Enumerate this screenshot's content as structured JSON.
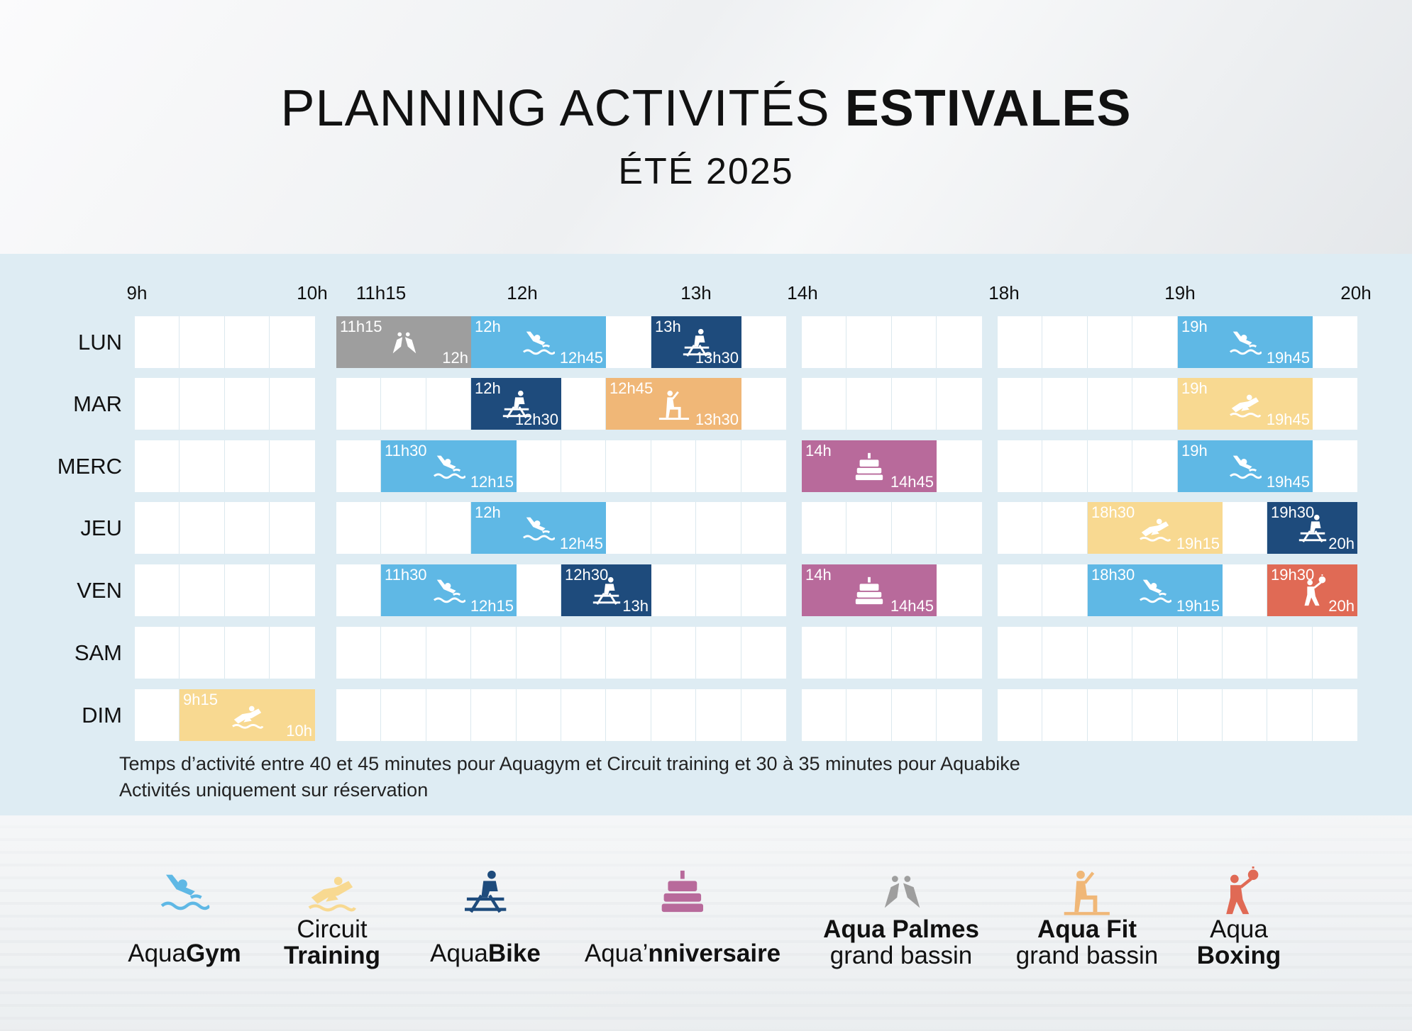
{
  "header": {
    "title_light": "PLANNING ACTIVITÉS",
    "title_bold": "ESTIVALES",
    "subtitle": "ÉTÉ 2025"
  },
  "hours": [
    "9h",
    "10h",
    "11h15",
    "12h",
    "13h",
    "14h",
    "18h",
    "19h",
    "20h"
  ],
  "days": [
    "LUN",
    "MAR",
    "MERC",
    "JEU",
    "VEN",
    "SAM",
    "DIM"
  ],
  "colors": {
    "aquagym": "#5fb8e5",
    "circuit": "#f8d991",
    "aquabike": "#1e4b7c",
    "anniversaire": "#b86a9b",
    "palmes": "#9e9e9e",
    "aquafit": "#f0b777",
    "boxing": "#e06a55"
  },
  "activities": [
    {
      "day": "LUN",
      "type": "palmes",
      "start": "11h15",
      "end": "12h",
      "icon": "fins-icon"
    },
    {
      "day": "LUN",
      "type": "aquagym",
      "start": "12h",
      "end": "12h45",
      "icon": "swimmer-icon"
    },
    {
      "day": "LUN",
      "type": "aquabike",
      "start": "13h",
      "end": "13h30",
      "icon": "bike-icon"
    },
    {
      "day": "LUN",
      "type": "aquagym",
      "start": "19h",
      "end": "19h45",
      "icon": "swimmer-icon"
    },
    {
      "day": "MAR",
      "type": "aquabike",
      "start": "12h",
      "end": "12h30",
      "icon": "bike-icon"
    },
    {
      "day": "MAR",
      "type": "aquafit",
      "start": "12h45",
      "end": "13h30",
      "icon": "aquafit-icon"
    },
    {
      "day": "MAR",
      "type": "circuit",
      "start": "19h",
      "end": "19h45",
      "icon": "circuit-icon"
    },
    {
      "day": "MERC",
      "type": "aquagym",
      "start": "11h30",
      "end": "12h15",
      "icon": "swimmer-icon"
    },
    {
      "day": "MERC",
      "type": "anniversaire",
      "start": "14h",
      "end": "14h45",
      "icon": "cake-icon"
    },
    {
      "day": "MERC",
      "type": "aquagym",
      "start": "19h",
      "end": "19h45",
      "icon": "swimmer-icon"
    },
    {
      "day": "JEU",
      "type": "aquagym",
      "start": "12h",
      "end": "12h45",
      "icon": "swimmer-icon"
    },
    {
      "day": "JEU",
      "type": "circuit",
      "start": "18h30",
      "end": "19h15",
      "icon": "circuit-icon"
    },
    {
      "day": "JEU",
      "type": "aquabike",
      "start": "19h30",
      "end": "20h",
      "icon": "bike-icon"
    },
    {
      "day": "VEN",
      "type": "aquagym",
      "start": "11h30",
      "end": "12h15",
      "icon": "swimmer-icon"
    },
    {
      "day": "VEN",
      "type": "aquabike",
      "start": "12h30",
      "end": "13h",
      "icon": "bike-icon"
    },
    {
      "day": "VEN",
      "type": "anniversaire",
      "start": "14h",
      "end": "14h45",
      "icon": "cake-icon"
    },
    {
      "day": "VEN",
      "type": "aquagym",
      "start": "18h30",
      "end": "19h15",
      "icon": "swimmer-icon"
    },
    {
      "day": "VEN",
      "type": "boxing",
      "start": "19h30",
      "end": "20h",
      "icon": "boxing-icon"
    },
    {
      "day": "DIM",
      "type": "circuit",
      "start": "9h15",
      "end": "10h",
      "icon": "circuit-icon"
    }
  ],
  "notes": [
    "Temps d’activité entre 40 et 45 minutes pour Aquagym et Circuit training et 30 à 35 minutes pour Aquabike",
    "Activités uniquement sur réservation"
  ],
  "legend": [
    {
      "type": "aquagym",
      "icon": "swimmer-icon",
      "line1_light": "Aqua",
      "line1_bold": "Gym",
      "line2_light": "",
      "line2_bold": "",
      "layout": "inline"
    },
    {
      "type": "circuit",
      "icon": "circuit-icon",
      "line1_light": "Circuit",
      "line1_bold": "",
      "line2_light": "",
      "line2_bold": "Training",
      "layout": "two"
    },
    {
      "type": "aquabike",
      "icon": "bike-icon",
      "line1_light": "Aqua",
      "line1_bold": "Bike",
      "line2_light": "",
      "line2_bold": "",
      "layout": "inline"
    },
    {
      "type": "anniversaire",
      "icon": "cake-icon",
      "line1_light": "Aqua’",
      "line1_bold": "nniversaire",
      "line2_light": "",
      "line2_bold": "",
      "layout": "inline"
    },
    {
      "type": "palmes",
      "icon": "fins-icon",
      "line1_light": "",
      "line1_bold": "Aqua Palmes",
      "line2_light": "grand bassin",
      "line2_bold": "",
      "layout": "two"
    },
    {
      "type": "aquafit",
      "icon": "aquafit-icon",
      "line1_light": "",
      "line1_bold": "Aqua Fit",
      "line2_light": "grand bassin",
      "line2_bold": "",
      "layout": "two"
    },
    {
      "type": "boxing",
      "icon": "boxing-icon",
      "line1_light": "Aqua",
      "line1_bold": "",
      "line2_light": "",
      "line2_bold": "Boxing",
      "layout": "two"
    }
  ]
}
